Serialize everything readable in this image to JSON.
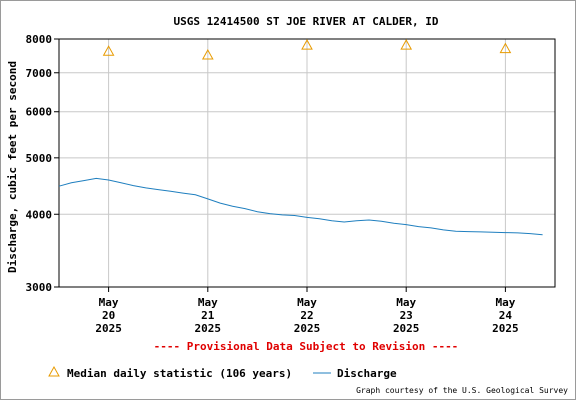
{
  "chart_data": {
    "type": "line",
    "title": "USGS 12414500 ST JOE RIVER AT CALDER, ID",
    "ylabel": "Discharge, cubic feet per second",
    "xlabel": "",
    "y_scale": "log",
    "ylim": [
      3000,
      8000
    ],
    "y_ticks": [
      3000,
      4000,
      5000,
      6000,
      7000,
      8000
    ],
    "y_tick_labels": [
      "3000",
      "4000",
      "5000",
      "6000",
      "7000",
      "8000"
    ],
    "x_range": [
      "2025-05-19T12:00",
      "2025-05-24T12:00"
    ],
    "x_ticks": [
      {
        "date": "2025-05-20",
        "label": [
          "May",
          "20",
          "2025"
        ]
      },
      {
        "date": "2025-05-21",
        "label": [
          "May",
          "21",
          "2025"
        ]
      },
      {
        "date": "2025-05-22",
        "label": [
          "May",
          "22",
          "2025"
        ]
      },
      {
        "date": "2025-05-23",
        "label": [
          "May",
          "23",
          "2025"
        ]
      },
      {
        "date": "2025-05-24",
        "label": [
          "May",
          "24",
          "2025"
        ]
      }
    ],
    "grid": true,
    "series": [
      {
        "name": "Discharge",
        "color": "#1f7fbf",
        "points": [
          [
            "2025-05-19T12:00",
            4470
          ],
          [
            "2025-05-19T15:00",
            4530
          ],
          [
            "2025-05-19T18:00",
            4570
          ],
          [
            "2025-05-19T21:00",
            4610
          ],
          [
            "2025-05-20T00:00",
            4580
          ],
          [
            "2025-05-20T03:00",
            4530
          ],
          [
            "2025-05-20T06:00",
            4480
          ],
          [
            "2025-05-20T09:00",
            4440
          ],
          [
            "2025-05-20T12:00",
            4410
          ],
          [
            "2025-05-20T15:00",
            4380
          ],
          [
            "2025-05-20T18:00",
            4350
          ],
          [
            "2025-05-20T21:00",
            4320
          ],
          [
            "2025-05-21T00:00",
            4250
          ],
          [
            "2025-05-21T03:00",
            4180
          ],
          [
            "2025-05-21T06:00",
            4130
          ],
          [
            "2025-05-21T09:00",
            4090
          ],
          [
            "2025-05-21T12:00",
            4040
          ],
          [
            "2025-05-21T15:00",
            4010
          ],
          [
            "2025-05-21T18:00",
            3990
          ],
          [
            "2025-05-21T21:00",
            3980
          ],
          [
            "2025-05-22T00:00",
            3950
          ],
          [
            "2025-05-22T03:00",
            3930
          ],
          [
            "2025-05-22T06:00",
            3900
          ],
          [
            "2025-05-22T09:00",
            3880
          ],
          [
            "2025-05-22T12:00",
            3900
          ],
          [
            "2025-05-22T15:00",
            3910
          ],
          [
            "2025-05-22T18:00",
            3890
          ],
          [
            "2025-05-22T21:00",
            3860
          ],
          [
            "2025-05-23T00:00",
            3840
          ],
          [
            "2025-05-23T03:00",
            3810
          ],
          [
            "2025-05-23T06:00",
            3790
          ],
          [
            "2025-05-23T09:00",
            3760
          ],
          [
            "2025-05-23T12:00",
            3740
          ],
          [
            "2025-05-23T15:00",
            3735
          ],
          [
            "2025-05-23T18:00",
            3730
          ],
          [
            "2025-05-23T21:00",
            3725
          ],
          [
            "2025-05-24T00:00",
            3720
          ],
          [
            "2025-05-24T03:00",
            3715
          ],
          [
            "2025-05-24T06:00",
            3705
          ],
          [
            "2025-05-24T09:00",
            3690
          ]
        ]
      },
      {
        "name": "Median daily statistic (106 years)",
        "color": "#e89b00",
        "marker": "triangle",
        "points": [
          [
            "2025-05-20T00:00",
            7620
          ],
          [
            "2025-05-21T00:00",
            7510
          ],
          [
            "2025-05-22T00:00",
            7810
          ],
          [
            "2025-05-23T00:00",
            7810
          ],
          [
            "2025-05-24T00:00",
            7700
          ]
        ]
      }
    ]
  },
  "annotation": {
    "provisional": "---- Provisional Data Subject to Revision ----",
    "credit": "Graph courtesy of the U.S. Geological Survey"
  },
  "legend": {
    "median_label": "Median daily statistic (106 years)",
    "discharge_label": "Discharge"
  },
  "colors": {
    "discharge": "#1f7fbf",
    "median": "#e89b00",
    "provisional": "#e00000",
    "grid": "#c8c8c8"
  }
}
